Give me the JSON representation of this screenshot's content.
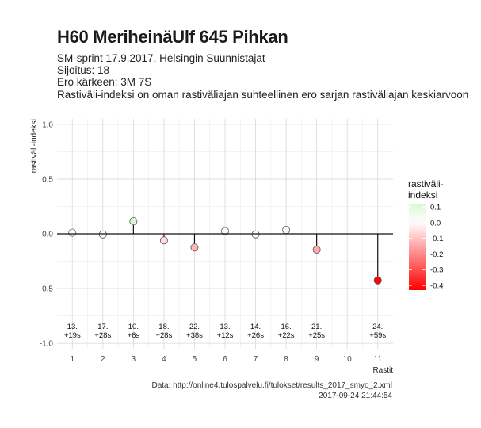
{
  "header": {
    "title": "H60 MeriheinäUlf 645 Pihkan",
    "subtitle_lines": [
      "SM-sprint 17.9.2017, Helsingin Suunnistajat",
      "Sijoitus: 18",
      "Ero kärkeen: 3M 7S",
      "Rastiväli-indeksi on oman rastiväliajan suhteellinen ero sarjan rastiväliajan keskiarvoon"
    ]
  },
  "chart_data": {
    "type": "scatter",
    "style": "lollipop",
    "title": "H60 MeriheinäUlf 645 Pihkan",
    "xlabel": "Rastit",
    "ylabel": "rastiväli-indeksi",
    "x": [
      1,
      2,
      3,
      4,
      5,
      6,
      7,
      8,
      9,
      11
    ],
    "y": [
      0.01,
      -0.005,
      0.115,
      -0.06,
      -0.125,
      0.025,
      -0.005,
      0.035,
      -0.145,
      -0.425
    ],
    "point_labels": [
      [
        "13.",
        "+19s"
      ],
      [
        "17.",
        "+28s"
      ],
      [
        "10.",
        "+6s"
      ],
      [
        "18.",
        "+28s"
      ],
      [
        "22.",
        "+38s"
      ],
      [
        "13.",
        "+12s"
      ],
      [
        "14.",
        "+26s"
      ],
      [
        "16.",
        "+22s"
      ],
      [
        "21.",
        "+25s"
      ],
      [
        "24.",
        "+59s"
      ]
    ],
    "x_ticks": [
      1,
      2,
      3,
      4,
      5,
      6,
      7,
      8,
      9,
      10,
      11
    ],
    "y_ticks": [
      -1.0,
      -0.5,
      0.0,
      0.5,
      1.0
    ],
    "y_tick_labels": [
      "-1.0",
      "-0.5",
      "0.0",
      "0.5",
      "1.0"
    ],
    "xlim": [
      0.5,
      11.5
    ],
    "ylim": [
      -1.05,
      1.05
    ],
    "grid": true,
    "legend": {
      "title_lines": [
        "rastiväli-",
        "indeksi"
      ],
      "ticks": [
        0.1,
        0.0,
        -0.1,
        -0.2,
        -0.3,
        -0.4
      ],
      "tick_labels": [
        "0.1",
        "0.0",
        "-0.1",
        "-0.2",
        "-0.3",
        "-0.4"
      ],
      "range": [
        -0.43,
        0.12
      ],
      "placement": "right",
      "colors": {
        "high": "#d9f7d2",
        "mid": "#ffffff",
        "low": "#ff0000"
      }
    }
  },
  "caption": {
    "source": "Data: http://online4.tulospalvelu.fi/tulokset/results_2017_smyo_2.xml",
    "timestamp": "2017-09-24 21:44:54"
  }
}
